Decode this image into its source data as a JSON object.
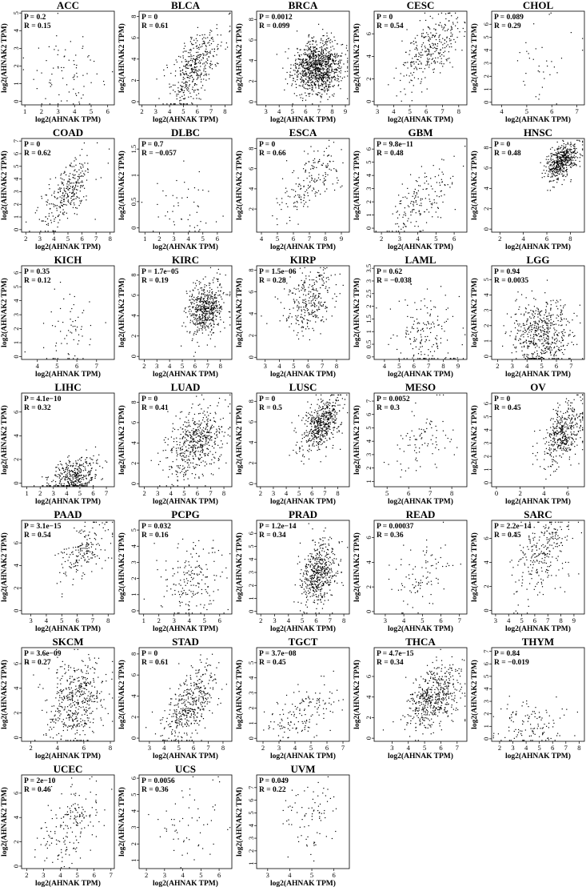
{
  "chart_data": [
    {
      "type": "scatter",
      "title": "ACC",
      "p_label": "P = 0.2",
      "r_label": "R = 0.15",
      "xlabel": "log2(AHNAK TPM)",
      "ylabel": "log2(AHNAK2 TPM)",
      "xlim": [
        0.8,
        6.4
      ],
      "ylim": [
        -0.2,
        5.1
      ],
      "xticks": [
        1,
        2,
        3,
        4,
        5,
        6
      ],
      "yticks": [
        0,
        1,
        2,
        3,
        4,
        5
      ],
      "n": 78,
      "x_mean": 3.6,
      "x_sd": 1.1,
      "y_mean": 1.5,
      "y_sd": 1.2,
      "r": 0.15
    },
    {
      "type": "scatter",
      "title": "BLCA",
      "p_label": "P = 0",
      "r_label": "R = 0.61",
      "xlabel": "log2(AHNAK TPM)",
      "ylabel": "log2(AHNAK2 TPM)",
      "xlim": [
        1.8,
        8.5
      ],
      "ylim": [
        -0.3,
        8.5
      ],
      "xticks": [
        2,
        3,
        4,
        5,
        6,
        7,
        8
      ],
      "yticks": [
        0,
        2,
        4,
        6,
        8
      ],
      "n": 400,
      "x_mean": 5.9,
      "x_sd": 1.0,
      "y_mean": 3.3,
      "y_sd": 1.9,
      "r": 0.61
    },
    {
      "type": "scatter",
      "title": "BRCA",
      "p_label": "P = 0.0012",
      "r_label": "R = 0.099",
      "xlabel": "log2(AHNAK TPM)",
      "ylabel": "log2(AHNAK2 TPM)",
      "xlim": [
        2.3,
        9.3
      ],
      "ylim": [
        -0.3,
        8.8
      ],
      "xticks": [
        3,
        4,
        5,
        6,
        7,
        8,
        9
      ],
      "yticks": [
        0,
        2,
        4,
        6,
        8
      ],
      "n": 1000,
      "x_mean": 6.9,
      "x_sd": 0.9,
      "y_mean": 3.3,
      "y_sd": 1.3,
      "r": 0.099
    },
    {
      "type": "scatter",
      "title": "CESC",
      "p_label": "P = 0",
      "r_label": "R = 0.54",
      "xlabel": "log2(AHNAK TPM)",
      "ylabel": "log2(AHNAK2 TPM)",
      "xlim": [
        2.8,
        8.5
      ],
      "ylim": [
        -0.3,
        8.0
      ],
      "xticks": [
        3,
        4,
        5,
        6,
        7,
        8
      ],
      "yticks": [
        0,
        2,
        4,
        6
      ],
      "n": 300,
      "x_mean": 6.3,
      "x_sd": 0.9,
      "y_mean": 4.8,
      "y_sd": 1.6,
      "r": 0.54
    },
    {
      "type": "scatter",
      "title": "CHOL",
      "p_label": "P = 0.089",
      "r_label": "R = 0.29",
      "xlabel": "log2(AHNAK TPM)",
      "ylabel": "log2(AHNAK2 TPM)",
      "xlim": [
        3.6,
        7.3
      ],
      "ylim": [
        -0.2,
        7.0
      ],
      "xticks": [
        4,
        5,
        6,
        7
      ],
      "yticks": [
        0,
        1,
        2,
        3,
        4,
        5,
        6
      ],
      "n": 36,
      "x_mean": 5.8,
      "x_sd": 0.8,
      "y_mean": 3.2,
      "y_sd": 1.8,
      "r": 0.29
    },
    {
      "type": "scatter",
      "title": "COAD",
      "p_label": "P = 0",
      "r_label": "R = 0.62",
      "xlabel": "log2(AHNAK TPM)",
      "ylabel": "log2(AHNAK2 TPM)",
      "xlim": [
        1.7,
        8.3
      ],
      "ylim": [
        -0.2,
        7.2
      ],
      "xticks": [
        2,
        3,
        4,
        5,
        6,
        7,
        8
      ],
      "yticks": [
        0,
        1,
        2,
        3,
        4,
        5,
        6,
        7
      ],
      "n": 290,
      "x_mean": 4.9,
      "x_sd": 0.9,
      "y_mean": 2.8,
      "y_sd": 1.4,
      "r": 0.62
    },
    {
      "type": "scatter",
      "title": "DLBC",
      "p_label": "P = 0.7",
      "r_label": "R = −0.057",
      "xlabel": "log2(AHNAK TPM)",
      "ylabel": "log2(AHNAK2 TPM)",
      "xlim": [
        0.6,
        7.0
      ],
      "ylim": [
        -0.08,
        1.7
      ],
      "xticks": [
        1,
        2,
        3,
        4,
        5,
        6
      ],
      "yticks": [
        0,
        0.5,
        1,
        1.5
      ],
      "n": 48,
      "x_mean": 3.6,
      "x_sd": 1.3,
      "y_mean": 0.4,
      "y_sd": 0.4,
      "r": -0.057
    },
    {
      "type": "scatter",
      "title": "ESCA",
      "p_label": "P = 0",
      "r_label": "R = 0.66",
      "xlabel": "log2(AHNAK TPM)",
      "ylabel": "log2(AHNAK2 TPM)",
      "xlim": [
        3.7,
        9.5
      ],
      "ylim": [
        -0.3,
        9.0
      ],
      "xticks": [
        4,
        5,
        6,
        7,
        8,
        9
      ],
      "yticks": [
        2,
        4,
        6,
        8
      ],
      "n": 180,
      "x_mean": 7.0,
      "x_sd": 1.0,
      "y_mean": 4.9,
      "y_sd": 1.9,
      "r": 0.66
    },
    {
      "type": "scatter",
      "title": "GBM",
      "p_label": "P = 9.8e−11",
      "r_label": "R = 0.48",
      "xlabel": "log2(AHNAK TPM)",
      "ylabel": "log2(AHNAK2 TPM)",
      "xlim": [
        1.6,
        6.7
      ],
      "ylim": [
        -0.3,
        6.8
      ],
      "xticks": [
        2,
        3,
        4,
        5,
        6
      ],
      "yticks": [
        0,
        1,
        2,
        3,
        4,
        5,
        6
      ],
      "n": 165,
      "x_mean": 4.2,
      "x_sd": 0.9,
      "y_mean": 2.1,
      "y_sd": 1.4,
      "r": 0.48
    },
    {
      "type": "scatter",
      "title": "HNSC",
      "p_label": "P = 0",
      "r_label": "R = 0.48",
      "xlabel": "log2(AHNAK TPM)",
      "ylabel": "log2(AHNAK2 TPM)",
      "xlim": [
        1.3,
        9.2
      ],
      "ylim": [
        -0.3,
        8.9
      ],
      "xticks": [
        2,
        4,
        6,
        8
      ],
      "yticks": [
        0,
        2,
        4,
        6,
        8
      ],
      "n": 500,
      "x_mean": 7.3,
      "x_sd": 0.7,
      "y_mean": 6.6,
      "y_sd": 0.9,
      "r": 0.48
    },
    {
      "type": "scatter",
      "title": "KICH",
      "p_label": "P = 0.35",
      "r_label": "R = 0.12",
      "xlabel": "log2(AHNAK TPM)",
      "ylabel": "log2(AHNAK2 TPM)",
      "xlim": [
        3.2,
        7.9
      ],
      "ylim": [
        -0.2,
        6.5
      ],
      "xticks": [
        4,
        5,
        6,
        7
      ],
      "yticks": [
        0,
        1,
        2,
        3,
        4,
        5,
        6
      ],
      "n": 65,
      "x_mean": 5.6,
      "x_sd": 0.7,
      "y_mean": 1.6,
      "y_sd": 1.4,
      "r": 0.12
    },
    {
      "type": "scatter",
      "title": "KIRC",
      "p_label": "P = 1.7e−05",
      "r_label": "R = 0.19",
      "xlabel": "log2(AHNAK TPM)",
      "ylabel": "log2(AHNAK2 TPM)",
      "xlim": [
        1.6,
        8.9
      ],
      "ylim": [
        -0.3,
        8.9
      ],
      "xticks": [
        2,
        3,
        4,
        5,
        6,
        7,
        8
      ],
      "yticks": [
        0,
        2,
        4,
        6,
        8
      ],
      "n": 530,
      "x_mean": 6.8,
      "x_sd": 0.7,
      "y_mean": 4.6,
      "y_sd": 1.3,
      "r": 0.19
    },
    {
      "type": "scatter",
      "title": "KIRP",
      "p_label": "P = 1.5e−06",
      "r_label": "R = 0.28",
      "xlabel": "log2(AHNAK TPM)",
      "ylabel": "log2(AHNAK2 TPM)",
      "xlim": [
        2.4,
        8.9
      ],
      "ylim": [
        -0.2,
        8.4
      ],
      "xticks": [
        3,
        4,
        5,
        6,
        7,
        8
      ],
      "yticks": [
        0,
        2,
        4,
        6,
        8
      ],
      "n": 290,
      "x_mean": 6.1,
      "x_sd": 0.9,
      "y_mean": 5.2,
      "y_sd": 1.5,
      "r": 0.28
    },
    {
      "type": "scatter",
      "title": "LAML",
      "p_label": "P = 0.62",
      "r_label": "R = −0.038",
      "xlabel": "log2(AHNAK TPM)",
      "ylabel": "log2(AHNAK2 TPM)",
      "xlim": [
        3.3,
        9.6
      ],
      "ylim": [
        -0.1,
        3.6
      ],
      "xticks": [
        4,
        5,
        6,
        7,
        8,
        9
      ],
      "yticks": [
        0,
        0.5,
        1,
        1.5,
        2,
        2.5,
        3,
        3.5
      ],
      "n": 170,
      "x_mean": 6.8,
      "x_sd": 1.1,
      "y_mean": 0.9,
      "y_sd": 0.8,
      "r": -0.038
    },
    {
      "type": "scatter",
      "title": "LGG",
      "p_label": "P = 0.94",
      "r_label": "R = 0.0035",
      "xlabel": "log2(AHNAK TPM)",
      "ylabel": "log2(AHNAK2 TPM)",
      "xlim": [
        1.6,
        7.9
      ],
      "ylim": [
        -0.2,
        5.9
      ],
      "xticks": [
        2,
        3,
        4,
        5,
        6,
        7
      ],
      "yticks": [
        0,
        1,
        2,
        3,
        4,
        5
      ],
      "n": 520,
      "x_mean": 5.0,
      "x_sd": 1.0,
      "y_mean": 1.5,
      "y_sd": 1.1,
      "r": 0.0035
    },
    {
      "type": "scatter",
      "title": "LIHC",
      "p_label": "P = 4.1e−10",
      "r_label": "R = 0.32",
      "xlabel": "log2(AHNAK TPM)",
      "ylabel": "log2(AHNAK2 TPM)",
      "xlim": [
        0.6,
        7.6
      ],
      "ylim": [
        -0.3,
        7.6
      ],
      "xticks": [
        1,
        2,
        3,
        4,
        5,
        6,
        7
      ],
      "yticks": [
        0,
        2,
        4,
        6
      ],
      "n": 370,
      "x_mean": 4.5,
      "x_sd": 0.9,
      "y_mean": 0.6,
      "y_sd": 0.8,
      "r": 0.32
    },
    {
      "type": "scatter",
      "title": "LUAD",
      "p_label": "P = 0",
      "r_label": "R = 0.41",
      "xlabel": "log2(AHNAK TPM)",
      "ylabel": "log2(AHNAK2 TPM)",
      "xlim": [
        1.6,
        8.6
      ],
      "ylim": [
        -0.3,
        8.9
      ],
      "xticks": [
        2,
        3,
        4,
        5,
        6,
        7,
        8
      ],
      "yticks": [
        0,
        2,
        4,
        6,
        8
      ],
      "n": 515,
      "x_mean": 5.8,
      "x_sd": 1.1,
      "y_mean": 3.9,
      "y_sd": 1.8,
      "r": 0.41
    },
    {
      "type": "scatter",
      "title": "LUSC",
      "p_label": "P = 0",
      "r_label": "R = 0.5",
      "xlabel": "log2(AHNAK TPM)",
      "ylabel": "log2(AHNAK2 TPM)",
      "xlim": [
        1.7,
        8.9
      ],
      "ylim": [
        -0.3,
        8.8
      ],
      "xticks": [
        2,
        3,
        4,
        5,
        6,
        7,
        8
      ],
      "yticks": [
        0,
        2,
        4,
        6,
        8
      ],
      "n": 500,
      "x_mean": 6.7,
      "x_sd": 0.8,
      "y_mean": 5.7,
      "y_sd": 1.4,
      "r": 0.5
    },
    {
      "type": "scatter",
      "title": "MESO",
      "p_label": "P = 0.0052",
      "r_label": "R = 0.3",
      "xlabel": "log2(AHNAK TPM)",
      "ylabel": "log2(AHNAK2 TPM)",
      "xlim": [
        4.4,
        8.7
      ],
      "ylim": [
        0.6,
        7.6
      ],
      "xticks": [
        5,
        6,
        7,
        8
      ],
      "yticks": [
        1,
        2,
        3,
        4,
        5,
        6,
        7
      ],
      "n": 87,
      "x_mean": 6.6,
      "x_sd": 0.8,
      "y_mean": 4.2,
      "y_sd": 1.3,
      "r": 0.3
    },
    {
      "type": "scatter",
      "title": "OV",
      "p_label": "P = 0",
      "r_label": "R = 0.45",
      "xlabel": "log2(AHNAK TPM)",
      "ylabel": "log2(AHNAK2 TPM)",
      "xlim": [
        -0.4,
        7.4
      ],
      "ylim": [
        -0.3,
        6.8
      ],
      "xticks": [
        0,
        2,
        4,
        6
      ],
      "yticks": [
        0,
        1,
        2,
        3,
        4,
        5,
        6
      ],
      "n": 420,
      "x_mean": 5.6,
      "x_sd": 0.9,
      "y_mean": 3.7,
      "y_sd": 1.3,
      "r": 0.45
    },
    {
      "type": "scatter",
      "title": "PAAD",
      "p_label": "P = 3.1e−15",
      "r_label": "R = 0.54",
      "xlabel": "log2(AHNAK TPM)",
      "ylabel": "log2(AHNAK2 TPM)",
      "xlim": [
        2.4,
        8.4
      ],
      "ylim": [
        -0.3,
        8.0
      ],
      "xticks": [
        3,
        4,
        5,
        6,
        7,
        8
      ],
      "yticks": [
        0,
        2,
        4,
        6
      ],
      "n": 180,
      "x_mean": 6.5,
      "x_sd": 0.8,
      "y_mean": 5.3,
      "y_sd": 1.3,
      "r": 0.54
    },
    {
      "type": "scatter",
      "title": "PCPG",
      "p_label": "P = 0.032",
      "r_label": "R = 0.16",
      "xlabel": "log2(AHNAK TPM)",
      "ylabel": "log2(AHNAK2 TPM)",
      "xlim": [
        0.7,
        6.8
      ],
      "ylim": [
        -0.2,
        5.6
      ],
      "xticks": [
        1,
        2,
        3,
        4,
        5,
        6
      ],
      "yticks": [
        0,
        1,
        2,
        3,
        4,
        5
      ],
      "n": 180,
      "x_mean": 4.2,
      "x_sd": 1.0,
      "y_mean": 1.9,
      "y_sd": 1.2,
      "r": 0.16
    },
    {
      "type": "scatter",
      "title": "PRAD",
      "p_label": "P = 1.2e−14",
      "r_label": "R = 0.34",
      "xlabel": "log2(AHNAK TPM)",
      "ylabel": "log2(AHNAK2 TPM)",
      "xlim": [
        1.7,
        8.4
      ],
      "ylim": [
        -0.2,
        7.0
      ],
      "xticks": [
        2,
        3,
        4,
        5,
        6,
        7,
        8
      ],
      "yticks": [
        0,
        1,
        2,
        3,
        4,
        5,
        6
      ],
      "n": 495,
      "x_mean": 6.2,
      "x_sd": 0.6,
      "y_mean": 2.9,
      "y_sd": 1.3,
      "r": 0.34
    },
    {
      "type": "scatter",
      "title": "READ",
      "p_label": "P = 0.00037",
      "r_label": "R = 0.36",
      "xlabel": "log2(AHNAK TPM)",
      "ylabel": "log2(AHNAK2 TPM)",
      "xlim": [
        2.4,
        7.4
      ],
      "ylim": [
        -0.2,
        7.4
      ],
      "xticks": [
        3,
        4,
        5,
        6,
        7
      ],
      "yticks": [
        0,
        2,
        4,
        6
      ],
      "n": 92,
      "x_mean": 5.0,
      "x_sd": 0.8,
      "y_mean": 2.8,
      "y_sd": 1.4,
      "r": 0.36
    },
    {
      "type": "scatter",
      "title": "SARC",
      "p_label": "P = 2.2e−14",
      "r_label": "R = 0.45",
      "xlabel": "log2(AHNAK TPM)",
      "ylabel": "log2(AHNAK2 TPM)",
      "xlim": [
        2.7,
        9.8
      ],
      "ylim": [
        -0.3,
        7.5
      ],
      "xticks": [
        3,
        4,
        5,
        6,
        7,
        8,
        9
      ],
      "yticks": [
        0,
        2,
        4,
        6
      ],
      "n": 260,
      "x_mean": 6.5,
      "x_sd": 1.0,
      "y_mean": 4.6,
      "y_sd": 1.7,
      "r": 0.45
    },
    {
      "type": "scatter",
      "title": "SKCM",
      "p_label": "P = 3.6e−09",
      "r_label": "R = 0.27",
      "xlabel": "log2(AHNAK TPM)",
      "ylabel": "log2(AHNAK2 TPM)",
      "xlim": [
        1.3,
        8.3
      ],
      "ylim": [
        -0.3,
        7.3
      ],
      "xticks": [
        2,
        4,
        6,
        8
      ],
      "yticks": [
        0,
        2,
        4,
        6
      ],
      "n": 460,
      "x_mean": 5.4,
      "x_sd": 1.1,
      "y_mean": 3.0,
      "y_sd": 1.8,
      "r": 0.27
    },
    {
      "type": "scatter",
      "title": "STAD",
      "p_label": "P = 0",
      "r_label": "R = 0.61",
      "xlabel": "log2(AHNAK TPM)",
      "ylabel": "log2(AHNAK2 TPM)",
      "xlim": [
        2.3,
        8.6
      ],
      "ylim": [
        -0.3,
        8.6
      ],
      "xticks": [
        3,
        4,
        5,
        6,
        7,
        8
      ],
      "yticks": [
        0,
        2,
        4,
        6,
        8
      ],
      "n": 410,
      "x_mean": 5.8,
      "x_sd": 0.9,
      "y_mean": 3.2,
      "y_sd": 1.8,
      "r": 0.61
    },
    {
      "type": "scatter",
      "title": "TGCT",
      "p_label": "P = 3.7e−08",
      "r_label": "R = 0.45",
      "xlabel": "log2(AHNAK TPM)",
      "ylabel": "log2(AHNAK2 TPM)",
      "xlim": [
        1.6,
        7.4
      ],
      "ylim": [
        -0.2,
        6.0
      ],
      "xticks": [
        2,
        3,
        4,
        5,
        6,
        7
      ],
      "yticks": [
        0,
        1,
        2,
        3,
        4,
        5
      ],
      "n": 150,
      "x_mean": 4.6,
      "x_sd": 1.1,
      "y_mean": 1.8,
      "y_sd": 1.0,
      "r": 0.45
    },
    {
      "type": "scatter",
      "title": "THCA",
      "p_label": "P = 4.7e−15",
      "r_label": "R = 0.34",
      "xlabel": "log2(AHNAK TPM)",
      "ylabel": "log2(AHNAK2 TPM)",
      "xlim": [
        1.9,
        7.6
      ],
      "ylim": [
        -0.3,
        8.8
      ],
      "xticks": [
        3,
        4,
        5,
        6,
        7
      ],
      "yticks": [
        0,
        2,
        4,
        6
      ],
      "n": 510,
      "x_mean": 5.6,
      "x_sd": 0.8,
      "y_mean": 3.9,
      "y_sd": 1.5,
      "r": 0.34
    },
    {
      "type": "scatter",
      "title": "THYM",
      "p_label": "P = 0.84",
      "r_label": "R = −0.019",
      "xlabel": "log2(AHNAK TPM)",
      "ylabel": "log2(AHNAK2 TPM)",
      "xlim": [
        1.4,
        8.4
      ],
      "ylim": [
        -0.2,
        7.3
      ],
      "xticks": [
        2,
        3,
        4,
        5,
        6,
        7,
        8
      ],
      "yticks": [
        0,
        1,
        2,
        3,
        4,
        5,
        6,
        7
      ],
      "n": 120,
      "x_mean": 4.3,
      "x_sd": 1.3,
      "y_mean": 0.9,
      "y_sd": 1.0,
      "r": -0.019
    },
    {
      "type": "scatter",
      "title": "UCEC",
      "p_label": "P = 2e−10",
      "r_label": "R = 0.46",
      "xlabel": "log2(AHNAK TPM)",
      "ylabel": "log2(AHNAK2 TPM)",
      "xlim": [
        1.7,
        7.2
      ],
      "ylim": [
        -0.2,
        7.5
      ],
      "xticks": [
        2,
        3,
        4,
        5,
        6,
        7
      ],
      "yticks": [
        0,
        2,
        4,
        6
      ],
      "n": 180,
      "x_mean": 4.6,
      "x_sd": 0.9,
      "y_mean": 3.3,
      "y_sd": 1.7,
      "r": 0.46
    },
    {
      "type": "scatter",
      "title": "UCS",
      "p_label": "P = 0.0056",
      "r_label": "R = 0.36",
      "xlabel": "log2(AHNAK TPM)",
      "ylabel": "log2(AHNAK2 TPM)",
      "xlim": [
        1.6,
        6.7
      ],
      "ylim": [
        0.5,
        6.2
      ],
      "xticks": [
        2,
        3,
        4,
        5,
        6
      ],
      "yticks": [
        1,
        2,
        3,
        4,
        5,
        6
      ],
      "n": 57,
      "x_mean": 4.4,
      "x_sd": 0.9,
      "y_mean": 3.0,
      "y_sd": 1.1,
      "r": 0.36
    },
    {
      "type": "scatter",
      "title": "UVM",
      "p_label": "P = 0.049",
      "r_label": "R = 0.22",
      "xlabel": "log2(AHNAK TPM)",
      "ylabel": "log2(AHNAK2 TPM)",
      "xlim": [
        2.5,
        6.7
      ],
      "ylim": [
        0.6,
        8.0
      ],
      "xticks": [
        3,
        4,
        5,
        6
      ],
      "yticks": [
        1,
        2,
        3,
        4,
        5,
        6,
        7
      ],
      "n": 80,
      "x_mean": 4.8,
      "x_sd": 0.7,
      "y_mean": 4.5,
      "y_sd": 1.6,
      "r": 0.22
    }
  ]
}
